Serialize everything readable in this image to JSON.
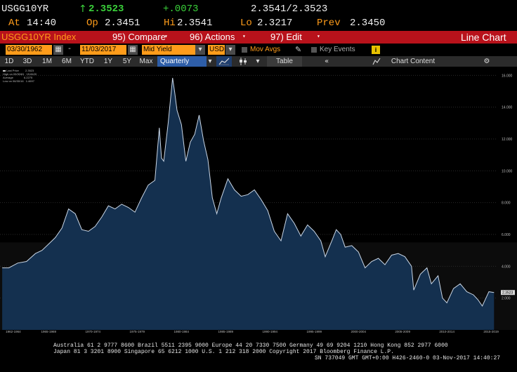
{
  "header": {
    "ticker": "USGG10YR",
    "arrow": "↑",
    "last": "2.3523",
    "change": "+.0073",
    "bidask": "2.3541/2.3523",
    "at_label": "At",
    "time": "14:40",
    "op_label": "Op",
    "open": "2.3451",
    "hi_label": "Hi",
    "high": "2.3541",
    "lo_label": "Lo",
    "low": "2.3217",
    "prev_label": "Prev",
    "prev": "2.3450"
  },
  "toolbar": {
    "index_label": "USGG10YR Index",
    "compare": "95) Compare",
    "actions": "96) Actions",
    "edit": "97) Edit",
    "chart_type": "Line Chart"
  },
  "settings": {
    "start_date": "03/30/1962",
    "end_date": "11/03/2017",
    "field": "Mid Yield",
    "currency": "USD",
    "mov_avgs": "Mov Avgs",
    "key_events": "Key Events"
  },
  "ranges": {
    "buttons": [
      "1D",
      "3D",
      "1M",
      "6M",
      "YTD",
      "1Y",
      "5Y",
      "Max"
    ],
    "period": "Quarterly",
    "table": "Table",
    "chart_content": "Chart Content"
  },
  "legend": {
    "last_price": "Last Price",
    "last_price_val": "2.3523",
    "high": "High on 09/30/81",
    "high_val": "15.8420",
    "average": "Average",
    "average_val": "6.2275",
    "low": "Low on 06/30/16",
    "low_val": "1.4697"
  },
  "footer": {
    "line1": "Australia 61 2 9777 8600 Brazil 5511 2395 9000 Europe 44 20 7330 7500 Germany 49 69 9204 1210 Hong Kong 852 2977 6000",
    "line2": "Japan 81 3 3201 8900       Singapore 65 6212 1000       U.S. 1 212 318 2000             Copyright 2017 Bloomberg Finance L.P.",
    "line3": "SN 737049 GMT  GMT+0:00 H426-2460-0 03-Nov-2017 14:40:27"
  },
  "colors": {
    "accent_red": "#b8121b",
    "field_orange": "#ff9c1a",
    "area_fill": "#14304f",
    "line": "#c9d6e6",
    "up_green": "#3ad13a"
  },
  "chart_data": {
    "type": "area",
    "title": "",
    "xlabel": "",
    "ylabel": "",
    "ylim": [
      0,
      16.5
    ],
    "xlim": [
      1962.0,
      2018.2
    ],
    "y_ticks": [
      "2.000",
      "4.000",
      "6.000",
      "8.000",
      "10.000",
      "12.000",
      "14.000",
      "16.000"
    ],
    "y_tick_values": [
      2,
      4,
      6,
      8,
      10,
      12,
      14,
      16
    ],
    "x_ticks": [
      "1962-1964",
      "1965-1969",
      "1970-1974",
      "1975-1979",
      "1980-1984",
      "1985-1989",
      "1990-1994",
      "1995-1999",
      "2000-2004",
      "2005-2009",
      "2010-2014",
      "2015-2019"
    ],
    "x_tick_values": [
      1963.5,
      1967.5,
      1972.5,
      1977.5,
      1982.5,
      1987.5,
      1992.5,
      1997.5,
      2002.5,
      2007.5,
      2012.5,
      2017.5
    ],
    "last_value_label": "2.3523",
    "series": [
      {
        "x": [
          1962.25,
          1963.0,
          1964.0,
          1965.0,
          1966.0,
          1966.75,
          1967.5,
          1968.25,
          1969.0,
          1969.75,
          1970.5,
          1971.25,
          1972.0,
          1972.75,
          1973.5,
          1974.25,
          1975.0,
          1975.75,
          1976.5,
          1977.25,
          1978.0,
          1978.75,
          1979.5,
          1980.0,
          1980.25,
          1980.5,
          1981.0,
          1981.5,
          1981.75,
          1982.0,
          1982.5,
          1983.0,
          1983.5,
          1984.0,
          1984.5,
          1985.0,
          1985.5,
          1986.0,
          1986.5,
          1987.0,
          1987.75,
          1988.5,
          1989.25,
          1990.0,
          1990.75,
          1991.5,
          1992.25,
          1993.0,
          1993.75,
          1994.5,
          1995.25,
          1996.0,
          1996.75,
          1997.5,
          1998.25,
          1998.75,
          1999.5,
          2000.0,
          2000.5,
          2001.0,
          2001.75,
          2002.5,
          2003.25,
          2004.0,
          2004.75,
          2005.5,
          2006.25,
          2007.0,
          2007.75,
          2008.5,
          2008.75,
          2009.5,
          2010.25,
          2010.75,
          2011.5,
          2012.0,
          2012.5,
          2013.25,
          2014.0,
          2014.75,
          2015.5,
          2016.0,
          2016.5,
          2016.75,
          2017.25,
          2017.83
        ],
        "y": [
          3.9,
          3.9,
          4.2,
          4.3,
          4.8,
          5.0,
          5.4,
          5.8,
          6.4,
          7.6,
          7.3,
          6.3,
          6.2,
          6.5,
          7.1,
          7.8,
          7.6,
          7.9,
          7.7,
          7.4,
          8.3,
          9.1,
          9.4,
          12.7,
          10.8,
          10.6,
          13.0,
          15.84,
          14.9,
          13.8,
          12.9,
          10.6,
          11.8,
          12.3,
          13.5,
          11.9,
          10.7,
          8.3,
          7.3,
          8.3,
          9.5,
          8.8,
          8.4,
          8.5,
          8.8,
          8.2,
          7.5,
          6.2,
          5.6,
          7.3,
          6.7,
          5.9,
          6.6,
          6.2,
          5.6,
          4.6,
          5.6,
          6.3,
          6.0,
          5.2,
          5.3,
          4.9,
          3.9,
          4.3,
          4.5,
          4.1,
          4.7,
          4.8,
          4.6,
          4.0,
          2.5,
          3.5,
          3.9,
          2.9,
          3.4,
          2.0,
          1.7,
          2.6,
          2.9,
          2.4,
          2.2,
          1.9,
          1.5,
          1.8,
          2.4,
          2.35
        ]
      }
    ]
  }
}
